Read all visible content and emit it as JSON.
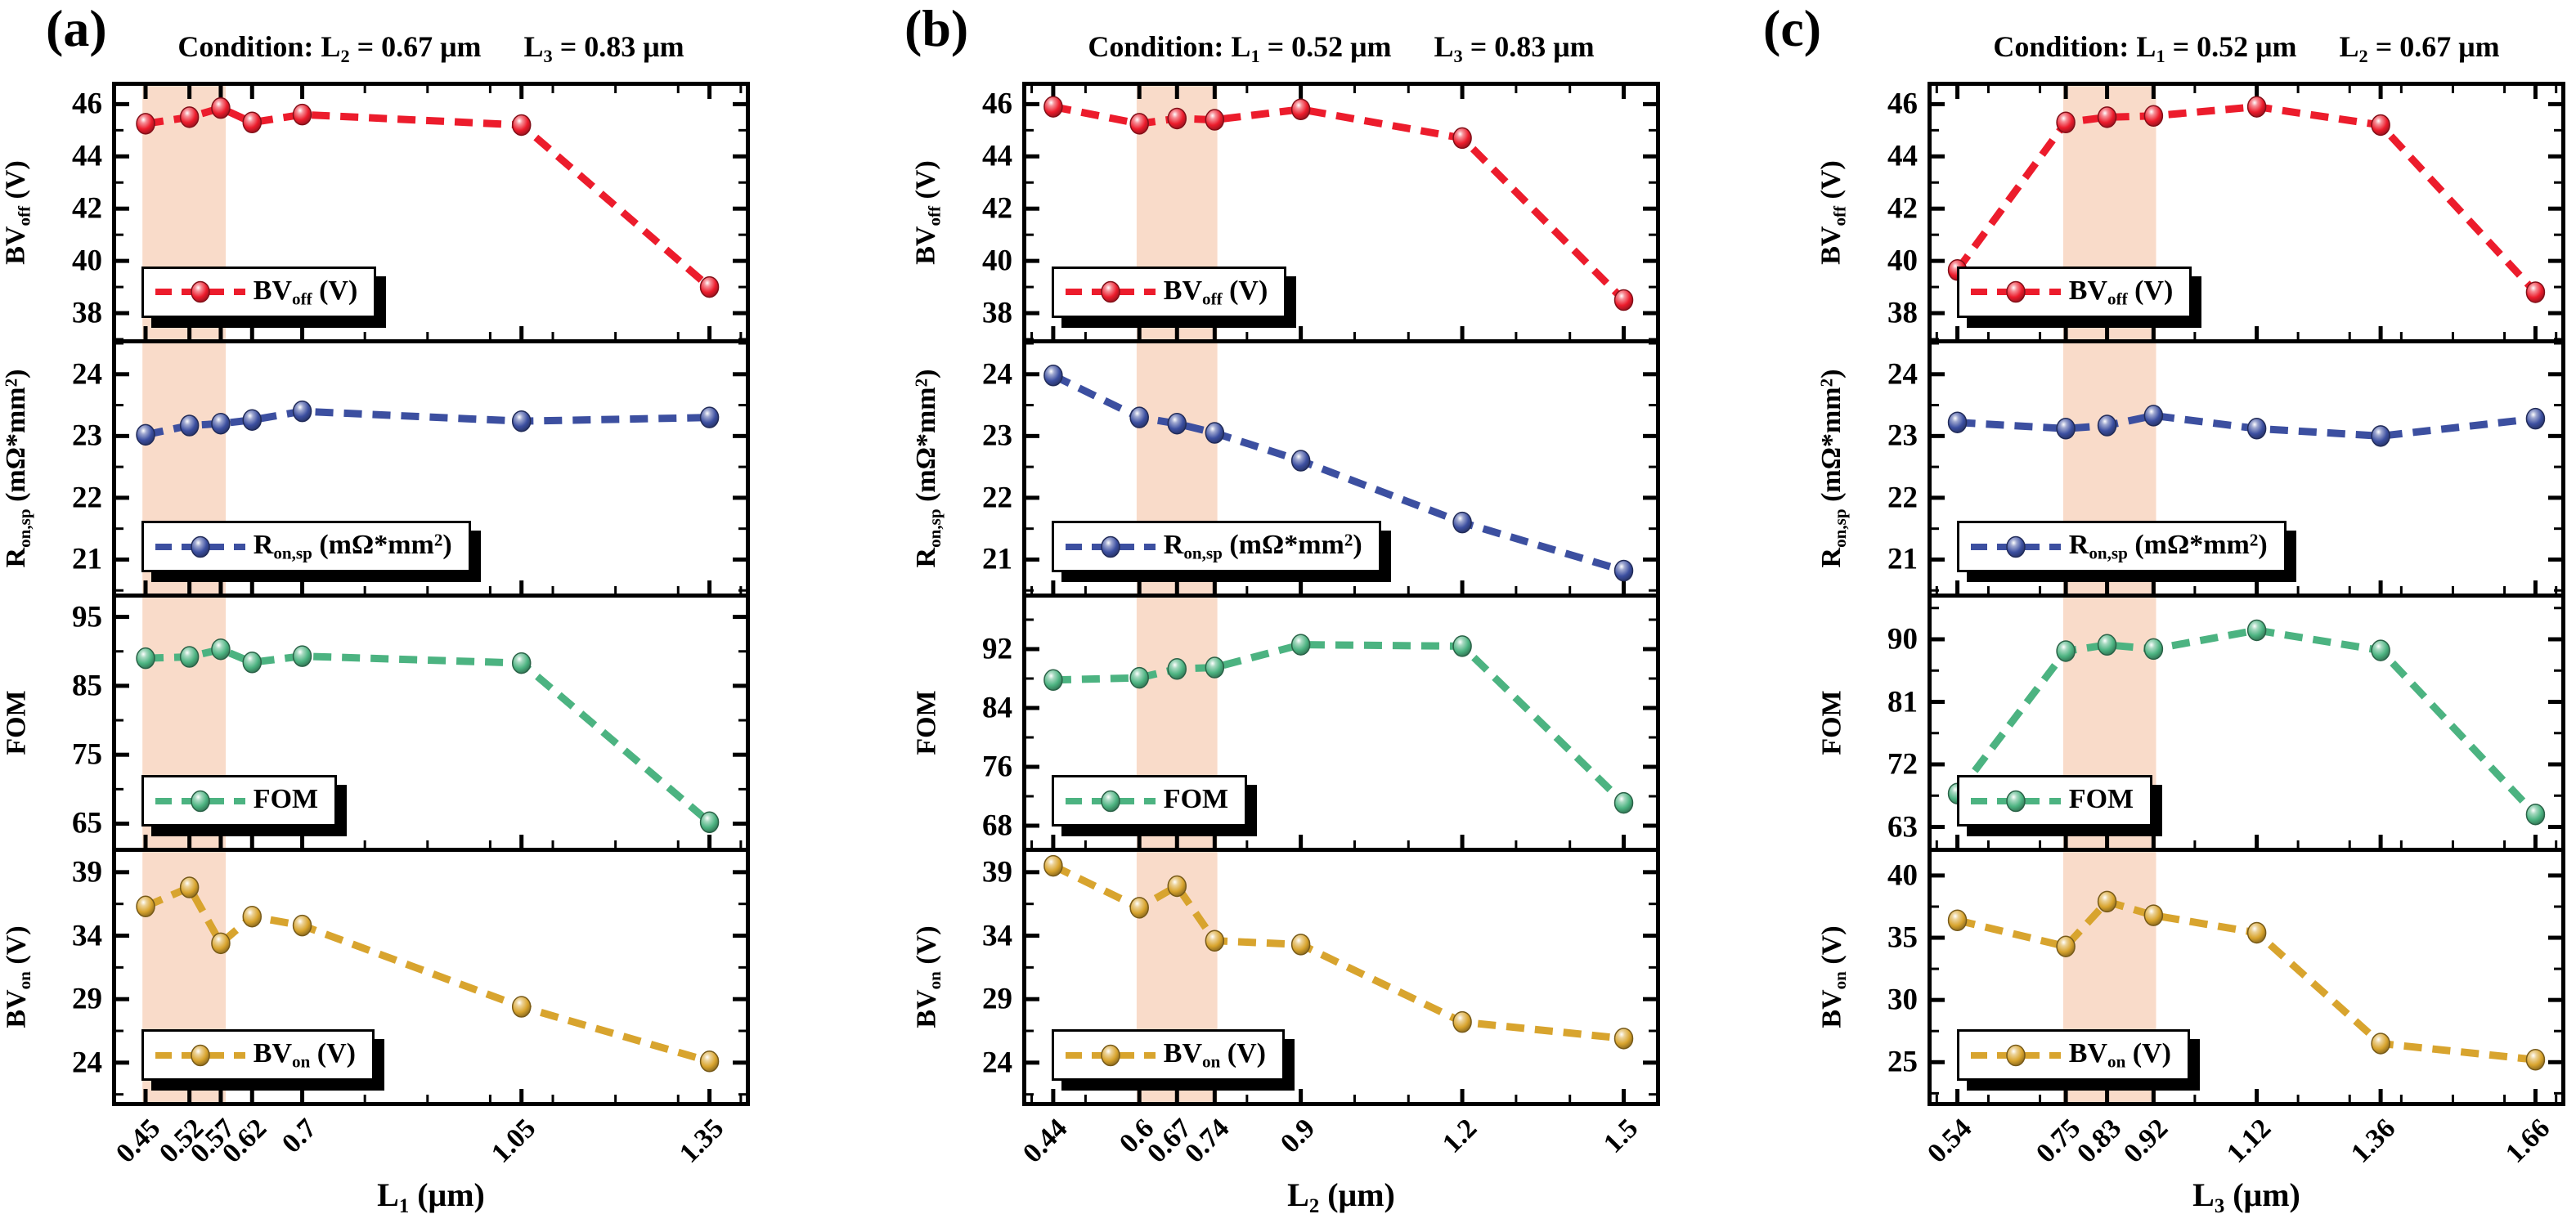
{
  "colors": {
    "red": "#ec1c2c",
    "blue": "#3c4fa0",
    "green": "#4cb381",
    "gold": "#d8a42e",
    "band": "#f9dbc9",
    "frame": "#000000"
  },
  "chart_data": {
    "type": "line",
    "legend_position": "lower-left-inside",
    "grid": false,
    "panels": [
      {
        "label": "(a)",
        "title_parts": {
          "t1": "Condition: L",
          "s1": "2",
          "t2": " = 0.67 μm",
          "t3": "L",
          "s2": "3",
          "t4": " = 0.83 μm"
        },
        "xlabel_parts": {
          "pre": "L",
          "sub": "1",
          "post": " (μm)"
        },
        "x": [
          0.45,
          0.52,
          0.57,
          0.62,
          0.7,
          1.05,
          1.35
        ],
        "xticklabels": [
          "0.45",
          "0.52",
          "0.57",
          "0.62",
          "0.7",
          "1.05",
          "1.35"
        ],
        "xlim": [
          0.403,
          1.408
        ],
        "x_minor_step": 0.1,
        "band": [
          0.445,
          0.578
        ],
        "subplots": [
          {
            "name": "BV_off",
            "series": "red",
            "ylabel_parts": {
              "pre": "BV",
              "sub": "off",
              "mid": " (V)",
              "sup": "",
              "post": ""
            },
            "yticks": [
              38,
              40,
              42,
              44,
              46
            ],
            "ylim": [
              37.0,
              46.7
            ],
            "values": [
              45.25,
              45.5,
              45.85,
              45.3,
              45.6,
              45.2,
              39.0
            ]
          },
          {
            "name": "R_on,sp",
            "series": "blue",
            "ylabel_parts": {
              "pre": "R",
              "sub": "on,sp",
              "mid": " (mΩ*mm",
              "sup": "2",
              "post": ")"
            },
            "yticks": [
              21,
              22,
              23,
              24
            ],
            "ylim": [
              20.45,
              24.5
            ],
            "values": [
              23.02,
              23.17,
              23.2,
              23.26,
              23.4,
              23.24,
              23.3
            ]
          },
          {
            "name": "FOM",
            "series": "green",
            "ylabel_parts": {
              "pre": "FOM",
              "sub": "",
              "mid": "",
              "sup": "",
              "post": ""
            },
            "yticks": [
              65,
              75,
              85,
              95
            ],
            "ylim": [
              61.5,
              97.8
            ],
            "values": [
              89.0,
              89.2,
              90.3,
              88.4,
              89.3,
              88.3,
              65.2
            ]
          },
          {
            "name": "BV_on",
            "series": "gold",
            "ylabel_parts": {
              "pre": "BV",
              "sub": "on",
              "mid": " (V)",
              "sup": "",
              "post": ""
            },
            "yticks": [
              24,
              29,
              34,
              39
            ],
            "ylim": [
              20.9,
              40.6
            ],
            "values": [
              36.3,
              37.8,
              33.4,
              35.5,
              34.8,
              28.4,
              24.1
            ]
          }
        ]
      },
      {
        "label": "(b)",
        "title_parts": {
          "t1": "Condition: L",
          "s1": "1",
          "t2": " = 0.52 μm",
          "t3": "L",
          "s2": "3",
          "t4": " = 0.83 μm"
        },
        "xlabel_parts": {
          "pre": "L",
          "sub": "2",
          "post": " (μm)"
        },
        "x": [
          0.44,
          0.6,
          0.67,
          0.74,
          0.9,
          1.2,
          1.5
        ],
        "xticklabels": [
          "0.44",
          "0.6",
          "0.67",
          "0.74",
          "0.9",
          "1.2",
          "1.5"
        ],
        "xlim": [
          0.39,
          1.56
        ],
        "x_minor_step": 0.1,
        "band": [
          0.595,
          0.745
        ],
        "subplots": [
          {
            "name": "BV_off",
            "series": "red",
            "ylabel_parts": {
              "pre": "BV",
              "sub": "off",
              "mid": " (V)",
              "sup": "",
              "post": ""
            },
            "yticks": [
              38,
              40,
              42,
              44,
              46
            ],
            "ylim": [
              37.0,
              46.7
            ],
            "values": [
              45.9,
              45.25,
              45.45,
              45.4,
              45.8,
              44.7,
              38.5
            ]
          },
          {
            "name": "R_on,sp",
            "series": "blue",
            "ylabel_parts": {
              "pre": "R",
              "sub": "on,sp",
              "mid": " (mΩ*mm",
              "sup": "2",
              "post": ")"
            },
            "yticks": [
              21,
              22,
              23,
              24
            ],
            "ylim": [
              20.45,
              24.5
            ],
            "values": [
              23.98,
              23.3,
              23.2,
              23.05,
              22.6,
              21.6,
              20.82
            ]
          },
          {
            "name": "FOM",
            "series": "green",
            "ylabel_parts": {
              "pre": "FOM",
              "sub": "",
              "mid": "",
              "sup": "",
              "post": ""
            },
            "yticks": [
              68,
              76,
              84,
              92
            ],
            "ylim": [
              65.0,
              99.0
            ],
            "values": [
              87.8,
              88.1,
              89.3,
              89.5,
              92.6,
              92.4,
              71.1
            ]
          },
          {
            "name": "BV_on",
            "series": "gold",
            "ylabel_parts": {
              "pre": "BV",
              "sub": "on",
              "mid": " (V)",
              "sup": "",
              "post": ""
            },
            "yticks": [
              24,
              29,
              34,
              39
            ],
            "ylim": [
              20.9,
              40.6
            ],
            "values": [
              39.5,
              36.2,
              37.9,
              33.6,
              33.3,
              27.2,
              25.9
            ]
          }
        ]
      },
      {
        "label": "(c)",
        "title_parts": {
          "t1": "Condition: L",
          "s1": "1",
          "t2": " = 0.52 μm",
          "t3": "L",
          "s2": "2",
          "t4": " = 0.67 μm"
        },
        "xlabel_parts": {
          "pre": "L",
          "sub": "3",
          "post": " (μm)"
        },
        "x": [
          0.54,
          0.75,
          0.83,
          0.92,
          1.12,
          1.36,
          1.66
        ],
        "xticklabels": [
          "0.54",
          "0.75",
          "0.83",
          "0.92",
          "1.12",
          "1.36",
          "1.66"
        ],
        "xlim": [
          0.49,
          1.71
        ],
        "x_minor_step": 0.1,
        "band": [
          0.745,
          0.925
        ],
        "subplots": [
          {
            "name": "BV_off",
            "series": "red",
            "ylabel_parts": {
              "pre": "BV",
              "sub": "off",
              "mid": " (V)",
              "sup": "",
              "post": ""
            },
            "yticks": [
              38,
              40,
              42,
              44,
              46
            ],
            "ylim": [
              37.0,
              46.7
            ],
            "values": [
              39.65,
              45.3,
              45.5,
              45.55,
              45.9,
              45.2,
              38.8
            ]
          },
          {
            "name": "R_on,sp",
            "series": "blue",
            "ylabel_parts": {
              "pre": "R",
              "sub": "on,sp",
              "mid": " (mΩ*mm",
              "sup": "2",
              "post": ")"
            },
            "yticks": [
              21,
              22,
              23,
              24
            ],
            "ylim": [
              20.45,
              24.5
            ],
            "values": [
              23.22,
              23.12,
              23.17,
              23.33,
              23.12,
              23.0,
              23.28
            ]
          },
          {
            "name": "FOM",
            "series": "green",
            "ylabel_parts": {
              "pre": "FOM",
              "sub": "",
              "mid": "",
              "sup": "",
              "post": ""
            },
            "yticks": [
              63,
              72,
              81,
              90
            ],
            "ylim": [
              60.0,
              96.0
            ],
            "values": [
              67.8,
              88.3,
              89.2,
              88.6,
              91.3,
              88.4,
              64.8
            ]
          },
          {
            "name": "BV_on",
            "series": "gold",
            "ylabel_parts": {
              "pre": "BV",
              "sub": "on",
              "mid": " (V)",
              "sup": "",
              "post": ""
            },
            "yticks": [
              25,
              30,
              35,
              40
            ],
            "ylim": [
              21.8,
              41.9
            ],
            "values": [
              36.4,
              34.3,
              37.9,
              36.8,
              35.4,
              26.5,
              25.2
            ]
          }
        ]
      }
    ]
  }
}
